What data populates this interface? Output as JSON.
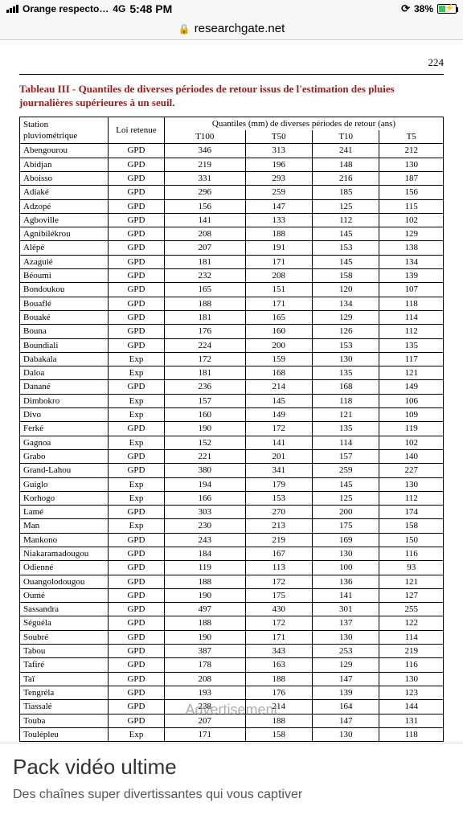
{
  "statusbar": {
    "carrier": "Orange respecto…",
    "network": "4G",
    "time": "5:48 PM",
    "rotation_lock_icon": "⟳",
    "battery_pct": "38%"
  },
  "urlbar": {
    "lock_icon": "🔒",
    "domain": "researchgate.net"
  },
  "page": {
    "number": "224",
    "caption": "Tableau III - Quantiles de diverses périodes de retour issus de l'estimation des pluies journalières supérieures à un seuil.",
    "caption_color": "#9b1c1c"
  },
  "table": {
    "header": {
      "station": "Station pluviométrique",
      "loi": "Loi retenue",
      "quantiles_group": "Quantiles (mm) de diverses périodes de retour (ans)",
      "cols": [
        "T100",
        "T50",
        "T10",
        "T5"
      ]
    },
    "rows": [
      {
        "station": "Abengourou",
        "loi": "GPD",
        "t100": "346",
        "t50": "313",
        "t10": "241",
        "t5": "212"
      },
      {
        "station": "Abidjan",
        "loi": "GPD",
        "t100": "219",
        "t50": "196",
        "t10": "148",
        "t5": "130"
      },
      {
        "station": "Aboisso",
        "loi": "GPD",
        "t100": "331",
        "t50": "293",
        "t10": "216",
        "t5": "187"
      },
      {
        "station": "Adiaké",
        "loi": "GPD",
        "t100": "296",
        "t50": "259",
        "t10": "185",
        "t5": "156"
      },
      {
        "station": "Adzopé",
        "loi": "GPD",
        "t100": "156",
        "t50": "147",
        "t10": "125",
        "t5": "115"
      },
      {
        "station": "Agboville",
        "loi": "GPD",
        "t100": "141",
        "t50": "133",
        "t10": "112",
        "t5": "102"
      },
      {
        "station": "Agnibilékrou",
        "loi": "GPD",
        "t100": "208",
        "t50": "188",
        "t10": "145",
        "t5": "129"
      },
      {
        "station": "Alépé",
        "loi": "GPD",
        "t100": "207",
        "t50": "191",
        "t10": "153",
        "t5": "138"
      },
      {
        "station": "Azaguié",
        "loi": "GPD",
        "t100": "181",
        "t50": "171",
        "t10": "145",
        "t5": "134"
      },
      {
        "station": "Béoumi",
        "loi": "GPD",
        "t100": "232",
        "t50": "208",
        "t10": "158",
        "t5": "139"
      },
      {
        "station": "Bondoukou",
        "loi": "GPD",
        "t100": "165",
        "t50": "151",
        "t10": "120",
        "t5": "107"
      },
      {
        "station": "Bouaflé",
        "loi": "GPD",
        "t100": "188",
        "t50": "171",
        "t10": "134",
        "t5": "118"
      },
      {
        "station": "Bouaké",
        "loi": "GPD",
        "t100": "181",
        "t50": "165",
        "t10": "129",
        "t5": "114"
      },
      {
        "station": "Bouna",
        "loi": "GPD",
        "t100": "176",
        "t50": "160",
        "t10": "126",
        "t5": "112"
      },
      {
        "station": "Boundiali",
        "loi": "GPD",
        "t100": "224",
        "t50": "200",
        "t10": "153",
        "t5": "135"
      },
      {
        "station": "Dabakala",
        "loi": "Exp",
        "t100": "172",
        "t50": "159",
        "t10": "130",
        "t5": "117"
      },
      {
        "station": "Daloa",
        "loi": "Exp",
        "t100": "181",
        "t50": "168",
        "t10": "135",
        "t5": "121"
      },
      {
        "station": "Danané",
        "loi": "GPD",
        "t100": "236",
        "t50": "214",
        "t10": "168",
        "t5": "149"
      },
      {
        "station": "Dimbokro",
        "loi": "Exp",
        "t100": "157",
        "t50": "145",
        "t10": "118",
        "t5": "106"
      },
      {
        "station": "Divo",
        "loi": "Exp",
        "t100": "160",
        "t50": "149",
        "t10": "121",
        "t5": "109"
      },
      {
        "station": "Ferké",
        "loi": "GPD",
        "t100": "190",
        "t50": "172",
        "t10": "135",
        "t5": "119"
      },
      {
        "station": "Gagnoa",
        "loi": "Exp",
        "t100": "152",
        "t50": "141",
        "t10": "114",
        "t5": "102"
      },
      {
        "station": "Grabo",
        "loi": "GPD",
        "t100": "221",
        "t50": "201",
        "t10": "157",
        "t5": "140"
      },
      {
        "station": "Grand-Lahou",
        "loi": "GPD",
        "t100": "380",
        "t50": "341",
        "t10": "259",
        "t5": "227"
      },
      {
        "station": "Guiglo",
        "loi": "Exp",
        "t100": "194",
        "t50": "179",
        "t10": "145",
        "t5": "130"
      },
      {
        "station": "Korhogo",
        "loi": "Exp",
        "t100": "166",
        "t50": "153",
        "t10": "125",
        "t5": "112"
      },
      {
        "station": "Lamé",
        "loi": "GPD",
        "t100": "303",
        "t50": "270",
        "t10": "200",
        "t5": "174"
      },
      {
        "station": "Man",
        "loi": "Exp",
        "t100": "230",
        "t50": "213",
        "t10": "175",
        "t5": "158"
      },
      {
        "station": "Mankono",
        "loi": "GPD",
        "t100": "243",
        "t50": "219",
        "t10": "169",
        "t5": "150"
      },
      {
        "station": "Niakaramadougou",
        "loi": "GPD",
        "t100": "184",
        "t50": "167",
        "t10": "130",
        "t5": "116"
      },
      {
        "station": "Odienné",
        "loi": "GPD",
        "t100": "119",
        "t50": "113",
        "t10": "100",
        "t5": "93"
      },
      {
        "station": "Ouangolodougou",
        "loi": "GPD",
        "t100": "188",
        "t50": "172",
        "t10": "136",
        "t5": "121"
      },
      {
        "station": "Oumé",
        "loi": "GPD",
        "t100": "190",
        "t50": "175",
        "t10": "141",
        "t5": "127"
      },
      {
        "station": "Sassandra",
        "loi": "GPD",
        "t100": "497",
        "t50": "430",
        "t10": "301",
        "t5": "255"
      },
      {
        "station": "Séguéla",
        "loi": "GPD",
        "t100": "188",
        "t50": "172",
        "t10": "137",
        "t5": "122"
      },
      {
        "station": "Soubré",
        "loi": "GPD",
        "t100": "190",
        "t50": "171",
        "t10": "130",
        "t5": "114"
      },
      {
        "station": "Tabou",
        "loi": "GPD",
        "t100": "387",
        "t50": "343",
        "t10": "253",
        "t5": "219"
      },
      {
        "station": "Tafiré",
        "loi": "GPD",
        "t100": "178",
        "t50": "163",
        "t10": "129",
        "t5": "116"
      },
      {
        "station": "Taï",
        "loi": "GPD",
        "t100": "208",
        "t50": "188",
        "t10": "147",
        "t5": "130"
      },
      {
        "station": "Tengréla",
        "loi": "GPD",
        "t100": "193",
        "t50": "176",
        "t10": "139",
        "t5": "123"
      },
      {
        "station": "Tiassalé",
        "loi": "GPD",
        "t100": "238",
        "t50": "214",
        "t10": "164",
        "t5": "144"
      },
      {
        "station": "Touba",
        "loi": "GPD",
        "t100": "207",
        "t50": "188",
        "t10": "147",
        "t5": "131"
      },
      {
        "station": "Toulépleu",
        "loi": "Exp",
        "t100": "171",
        "t50": "158",
        "t10": "130",
        "t5": "118"
      }
    ]
  },
  "ad": {
    "watermark": "Advertisement",
    "title": "Pack vidéo ultime",
    "subtitle": "Des chaînes super divertissantes qui vous captiver"
  }
}
